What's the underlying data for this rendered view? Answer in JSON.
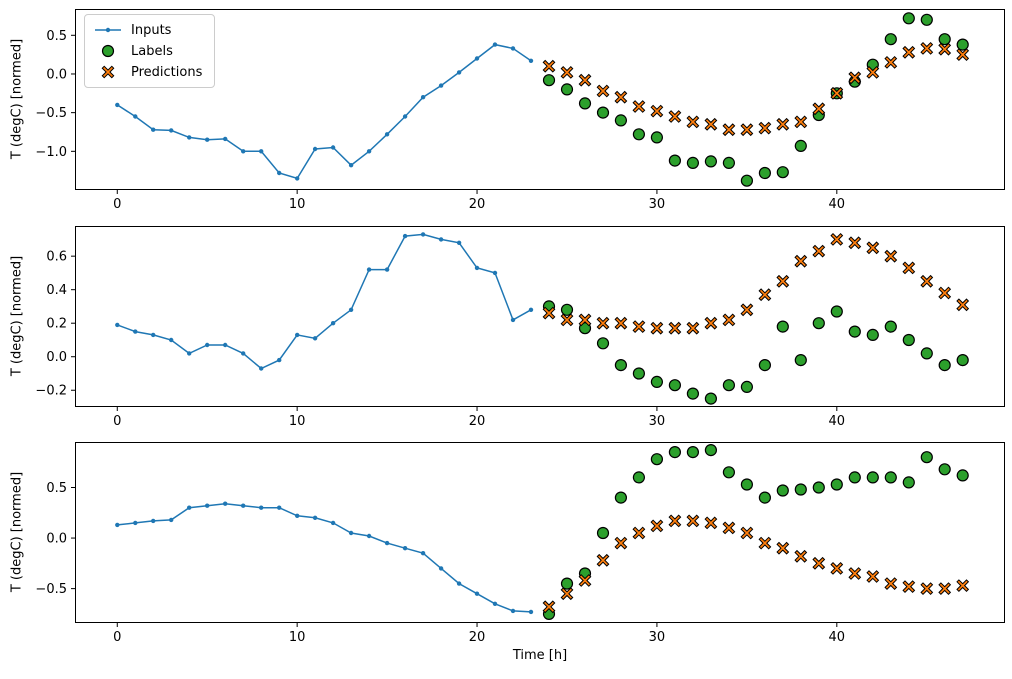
{
  "figure": {
    "title": "",
    "xlabel": "Time [h]",
    "ylabel": "T (degC) [normed]",
    "background_color": "#ffffff",
    "spine_color": "#000000"
  },
  "legend": {
    "position": "upper left",
    "items": [
      {
        "label": "Inputs",
        "marker": "line-dot",
        "color": "#1f77b4"
      },
      {
        "label": "Labels",
        "marker": "circle",
        "color": "#2ca02c",
        "edge_color": "#000000"
      },
      {
        "label": "Predictions",
        "marker": "X",
        "color": "#ff7f0e",
        "edge_color": "#000000"
      }
    ]
  },
  "chart_data": [
    {
      "type": "line+scatter",
      "title": "",
      "xlabel": "",
      "ylabel": "T (degC) [normed]",
      "xlim": [
        -2.35,
        49.35
      ],
      "ylim": [
        -1.5,
        0.84
      ],
      "xticks": [
        0,
        10,
        20,
        30,
        40
      ],
      "yticks": [
        -1.0,
        -0.5,
        0.0,
        0.5
      ],
      "grid": false,
      "series": [
        {
          "name": "Inputs",
          "type": "line",
          "marker": "dot",
          "color": "#1f77b4",
          "x": [
            0,
            1,
            2,
            3,
            4,
            5,
            6,
            7,
            8,
            9,
            10,
            11,
            12,
            13,
            14,
            15,
            16,
            17,
            18,
            19,
            20,
            21,
            22,
            23
          ],
          "y": [
            -0.4,
            -0.55,
            -0.72,
            -0.73,
            -0.82,
            -0.85,
            -0.84,
            -1.0,
            -1.0,
            -1.28,
            -1.35,
            -0.97,
            -0.95,
            -1.18,
            -1.0,
            -0.78,
            -0.55,
            -0.3,
            -0.15,
            0.02,
            0.2,
            0.38,
            0.33,
            0.17
          ]
        },
        {
          "name": "Labels",
          "type": "scatter",
          "marker": "circle",
          "color": "#2ca02c",
          "edge_color": "#000000",
          "x": [
            24,
            25,
            26,
            27,
            28,
            29,
            30,
            31,
            32,
            33,
            34,
            35,
            36,
            37,
            38,
            39,
            40,
            41,
            42,
            43,
            44,
            45,
            46,
            47
          ],
          "y": [
            -0.08,
            -0.2,
            -0.38,
            -0.5,
            -0.6,
            -0.78,
            -0.82,
            -1.12,
            -1.15,
            -1.13,
            -1.15,
            -1.38,
            -1.28,
            -1.27,
            -0.93,
            -0.53,
            -0.25,
            -0.1,
            0.12,
            0.45,
            0.72,
            0.7,
            0.45,
            0.38
          ]
        },
        {
          "name": "Predictions",
          "type": "scatter",
          "marker": "X",
          "color": "#ff7f0e",
          "edge_color": "#000000",
          "x": [
            24,
            25,
            26,
            27,
            28,
            29,
            30,
            31,
            32,
            33,
            34,
            35,
            36,
            37,
            38,
            39,
            40,
            41,
            42,
            43,
            44,
            45,
            46,
            47
          ],
          "y": [
            0.1,
            0.02,
            -0.08,
            -0.22,
            -0.3,
            -0.42,
            -0.48,
            -0.55,
            -0.62,
            -0.65,
            -0.72,
            -0.72,
            -0.7,
            -0.65,
            -0.62,
            -0.45,
            -0.25,
            -0.05,
            0.02,
            0.15,
            0.28,
            0.33,
            0.32,
            0.25
          ]
        }
      ]
    },
    {
      "type": "line+scatter",
      "title": "",
      "xlabel": "",
      "ylabel": "T (degC) [normed]",
      "xlim": [
        -2.35,
        49.35
      ],
      "ylim": [
        -0.3,
        0.78
      ],
      "xticks": [
        0,
        10,
        20,
        30,
        40
      ],
      "yticks": [
        -0.2,
        0.0,
        0.2,
        0.4,
        0.6
      ],
      "grid": false,
      "series": [
        {
          "name": "Inputs",
          "type": "line",
          "marker": "dot",
          "color": "#1f77b4",
          "x": [
            0,
            1,
            2,
            3,
            4,
            5,
            6,
            7,
            8,
            9,
            10,
            11,
            12,
            13,
            14,
            15,
            16,
            17,
            18,
            19,
            20,
            21,
            22,
            23
          ],
          "y": [
            0.19,
            0.15,
            0.13,
            0.1,
            0.02,
            0.07,
            0.07,
            0.02,
            -0.07,
            -0.02,
            0.13,
            0.11,
            0.2,
            0.28,
            0.52,
            0.52,
            0.72,
            0.73,
            0.7,
            0.68,
            0.53,
            0.5,
            0.22,
            0.28
          ]
        },
        {
          "name": "Labels",
          "type": "scatter",
          "marker": "circle",
          "color": "#2ca02c",
          "edge_color": "#000000",
          "x": [
            24,
            25,
            26,
            27,
            28,
            29,
            30,
            31,
            32,
            33,
            34,
            35,
            36,
            37,
            38,
            39,
            40,
            41,
            42,
            43,
            44,
            45,
            46,
            47
          ],
          "y": [
            0.3,
            0.28,
            0.17,
            0.08,
            -0.05,
            -0.1,
            -0.15,
            -0.17,
            -0.22,
            -0.25,
            -0.17,
            -0.18,
            -0.05,
            0.18,
            -0.02,
            0.2,
            0.27,
            0.15,
            0.13,
            0.18,
            0.1,
            0.02,
            -0.05,
            -0.02
          ]
        },
        {
          "name": "Predictions",
          "type": "scatter",
          "marker": "X",
          "color": "#ff7f0e",
          "edge_color": "#000000",
          "x": [
            24,
            25,
            26,
            27,
            28,
            29,
            30,
            31,
            32,
            33,
            34,
            35,
            36,
            37,
            38,
            39,
            40,
            41,
            42,
            43,
            44,
            45,
            46,
            47
          ],
          "y": [
            0.26,
            0.22,
            0.22,
            0.2,
            0.2,
            0.18,
            0.17,
            0.17,
            0.17,
            0.2,
            0.22,
            0.28,
            0.37,
            0.45,
            0.57,
            0.63,
            0.7,
            0.68,
            0.65,
            0.6,
            0.53,
            0.45,
            0.38,
            0.31
          ]
        }
      ]
    },
    {
      "type": "line+scatter",
      "title": "",
      "xlabel": "Time [h]",
      "ylabel": "T (degC) [normed]",
      "xlim": [
        -2.35,
        49.35
      ],
      "ylim": [
        -0.84,
        0.95
      ],
      "xticks": [
        0,
        10,
        20,
        30,
        40
      ],
      "yticks": [
        -0.5,
        0.0,
        0.5
      ],
      "grid": false,
      "series": [
        {
          "name": "Inputs",
          "type": "line",
          "marker": "dot",
          "color": "#1f77b4",
          "x": [
            0,
            1,
            2,
            3,
            4,
            5,
            6,
            7,
            8,
            9,
            10,
            11,
            12,
            13,
            14,
            15,
            16,
            17,
            18,
            19,
            20,
            21,
            22,
            23
          ],
          "y": [
            0.13,
            0.15,
            0.17,
            0.18,
            0.3,
            0.32,
            0.34,
            0.32,
            0.3,
            0.3,
            0.22,
            0.2,
            0.15,
            0.05,
            0.02,
            -0.05,
            -0.1,
            -0.15,
            -0.3,
            -0.45,
            -0.55,
            -0.65,
            -0.72,
            -0.73
          ]
        },
        {
          "name": "Labels",
          "type": "scatter",
          "marker": "circle",
          "color": "#2ca02c",
          "edge_color": "#000000",
          "x": [
            24,
            25,
            26,
            27,
            28,
            29,
            30,
            31,
            32,
            33,
            34,
            35,
            36,
            37,
            38,
            39,
            40,
            41,
            42,
            43,
            44,
            45,
            46,
            47
          ],
          "y": [
            -0.75,
            -0.45,
            -0.35,
            0.05,
            0.4,
            0.6,
            0.78,
            0.85,
            0.85,
            0.87,
            0.65,
            0.53,
            0.4,
            0.47,
            0.48,
            0.5,
            0.53,
            0.6,
            0.6,
            0.6,
            0.55,
            0.8,
            0.68,
            0.62
          ]
        },
        {
          "name": "Predictions",
          "type": "scatter",
          "marker": "X",
          "color": "#ff7f0e",
          "edge_color": "#000000",
          "x": [
            24,
            25,
            26,
            27,
            28,
            29,
            30,
            31,
            32,
            33,
            34,
            35,
            36,
            37,
            38,
            39,
            40,
            41,
            42,
            43,
            44,
            45,
            46,
            47
          ],
          "y": [
            -0.68,
            -0.55,
            -0.42,
            -0.22,
            -0.05,
            0.05,
            0.12,
            0.17,
            0.17,
            0.15,
            0.1,
            0.05,
            -0.05,
            -0.1,
            -0.18,
            -0.25,
            -0.3,
            -0.35,
            -0.38,
            -0.45,
            -0.48,
            -0.5,
            -0.5,
            -0.47
          ]
        }
      ]
    }
  ]
}
